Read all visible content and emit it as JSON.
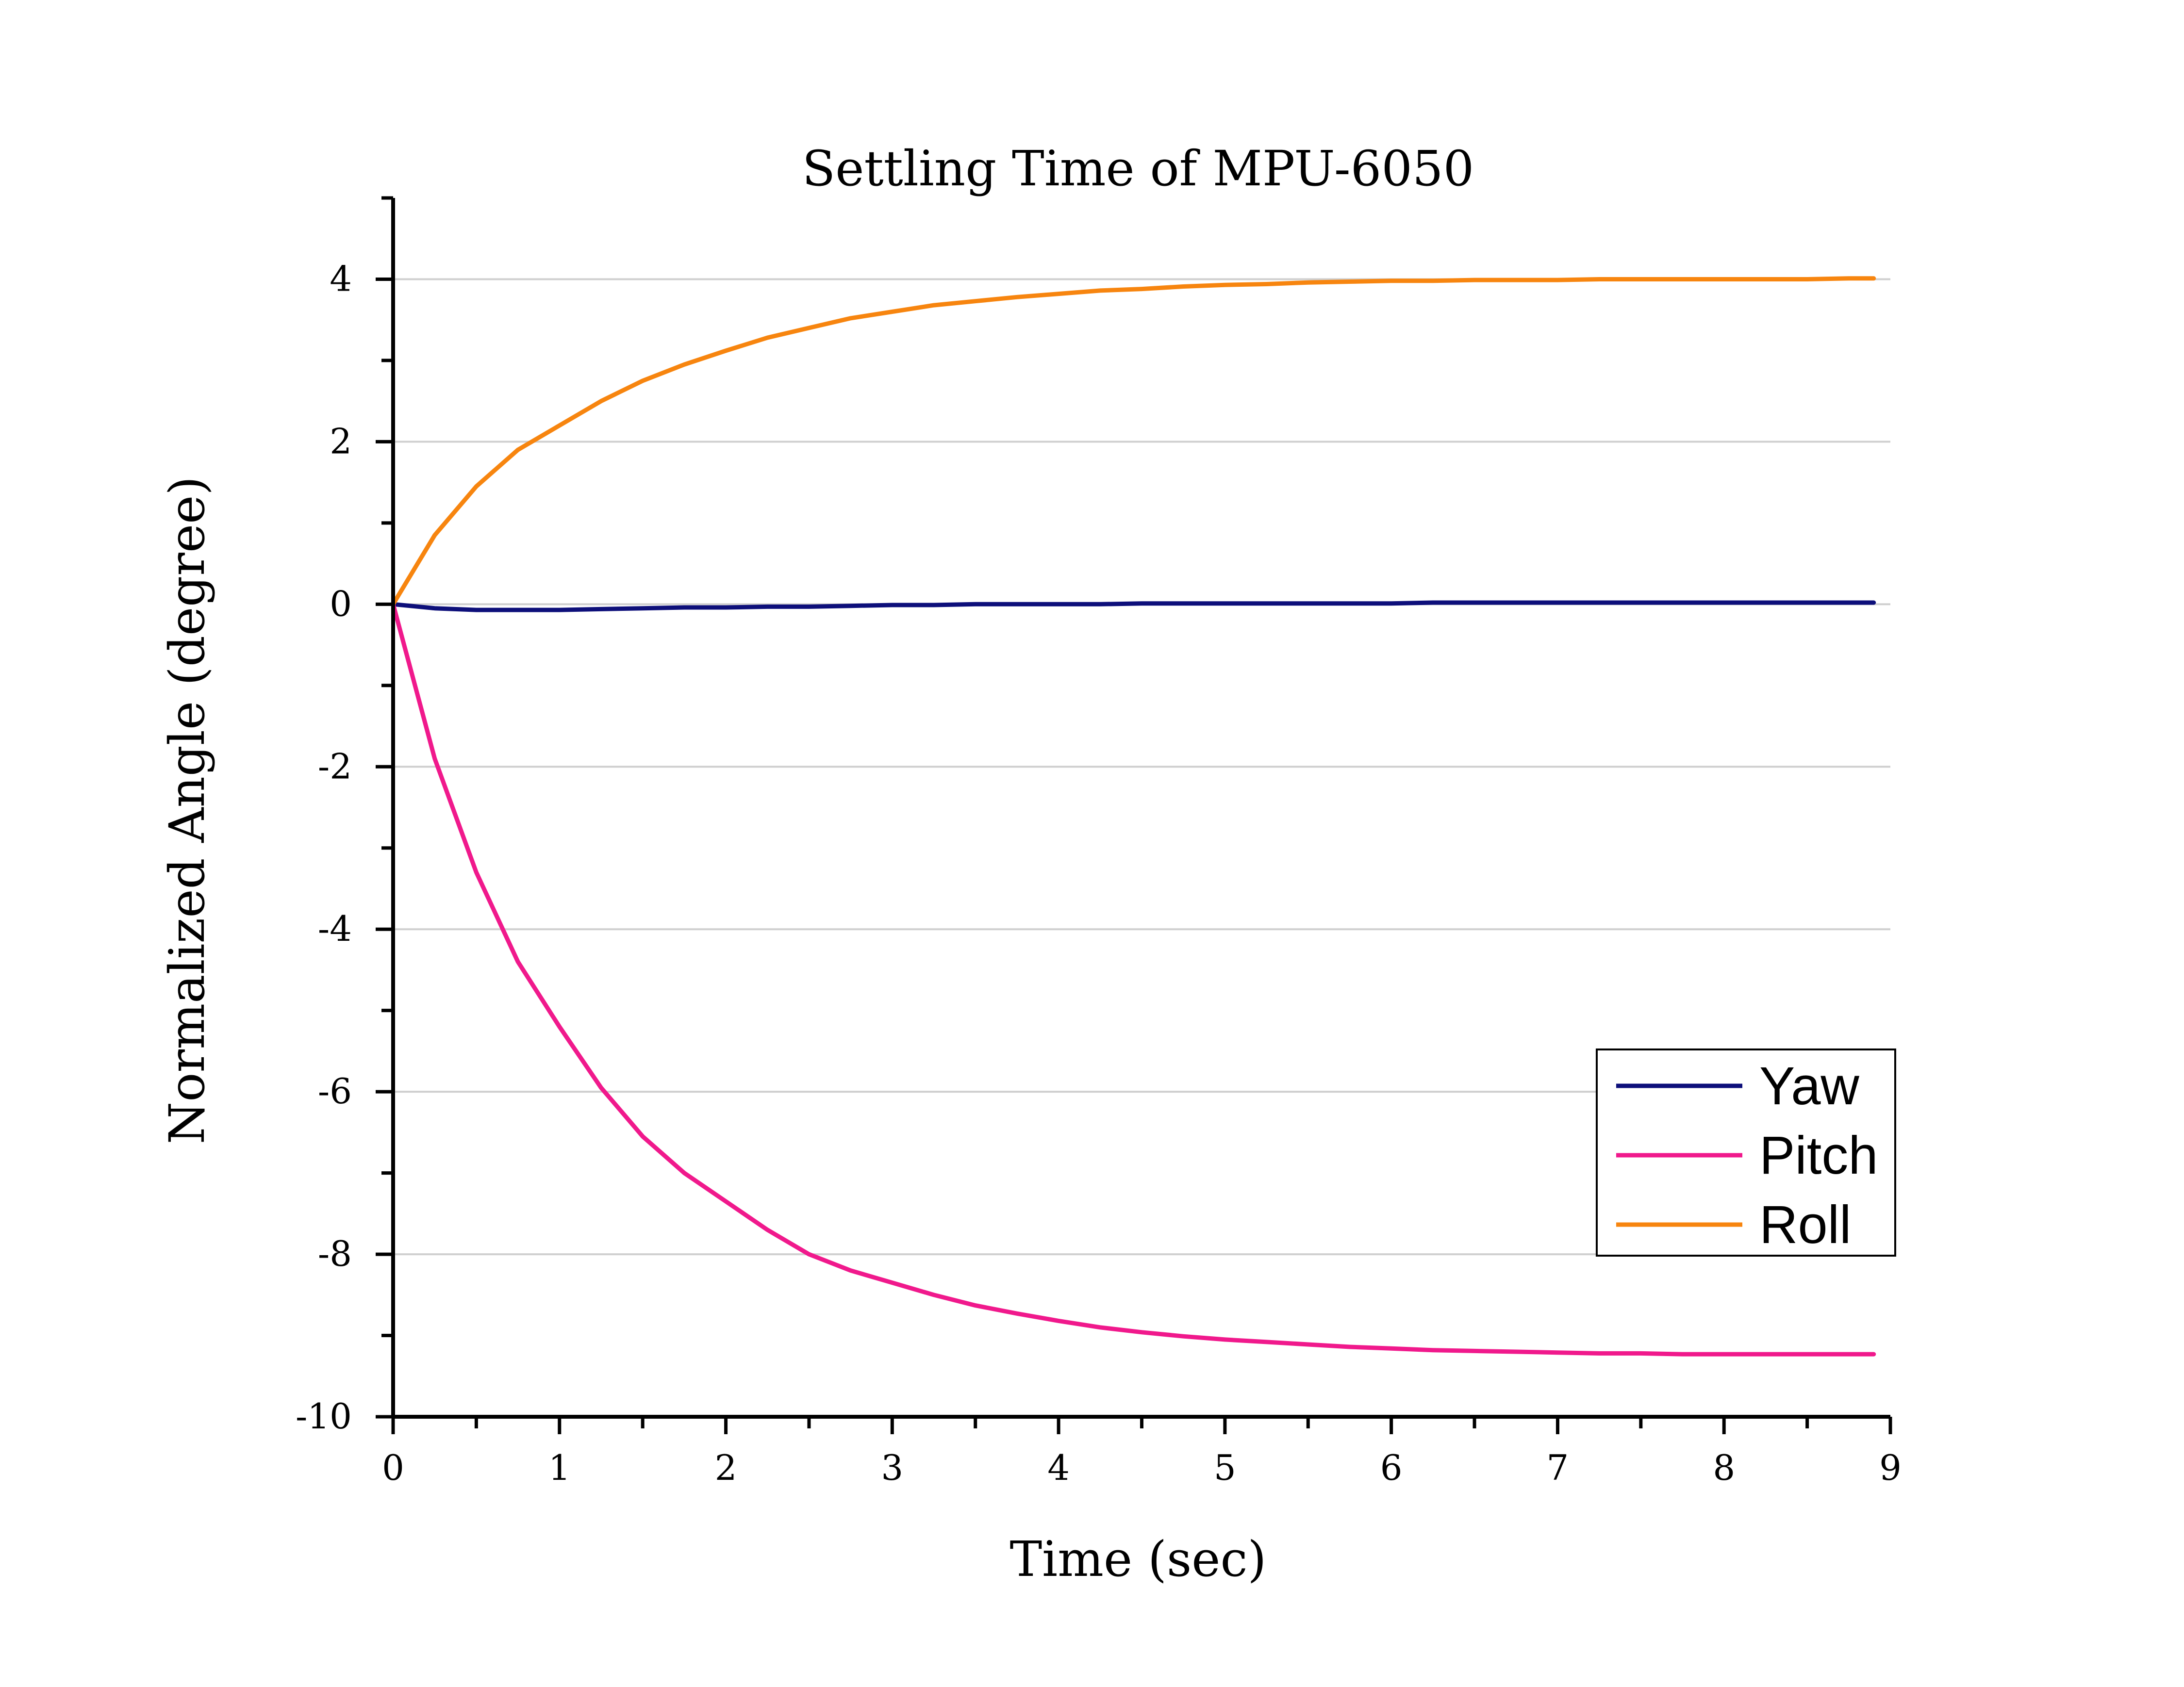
{
  "chart_data": {
    "type": "line",
    "title": "Settling Time of MPU-6050",
    "xlabel": "Time (sec)",
    "ylabel": "Normalized Angle (degree)",
    "xlim": [
      0,
      9
    ],
    "ylim": [
      -10,
      5
    ],
    "x_ticks": [
      0,
      1,
      2,
      3,
      4,
      5,
      6,
      7,
      8,
      9
    ],
    "x_tick_labels": [
      "0",
      "1",
      "2",
      "3",
      "4",
      "5",
      "6",
      "7",
      "8",
      "9"
    ],
    "y_ticks": [
      4,
      2,
      0,
      -2,
      -4,
      -6,
      -8,
      -10
    ],
    "y_tick_labels": [
      "4",
      "2",
      "0",
      "-2",
      "-4",
      "-6",
      "-8",
      "-10"
    ],
    "grid": true,
    "legend_position": "bottom-right",
    "x": [
      0,
      0.25,
      0.5,
      0.75,
      1,
      1.25,
      1.5,
      1.75,
      2,
      2.25,
      2.5,
      2.75,
      3,
      3.25,
      3.5,
      3.75,
      4,
      4.25,
      4.5,
      4.75,
      5,
      5.25,
      5.5,
      5.75,
      6,
      6.25,
      6.5,
      6.75,
      7,
      7.25,
      7.5,
      7.75,
      8,
      8.25,
      8.5,
      8.75,
      8.9
    ],
    "series": [
      {
        "name": "Yaw",
        "color": "#0d0f7a",
        "values": [
          0,
          -0.05,
          -0.07,
          -0.07,
          -0.07,
          -0.06,
          -0.05,
          -0.04,
          -0.04,
          -0.03,
          -0.03,
          -0.02,
          -0.01,
          -0.01,
          0,
          0,
          0,
          0,
          0.01,
          0.01,
          0.01,
          0.01,
          0.01,
          0.01,
          0.01,
          0.02,
          0.02,
          0.02,
          0.02,
          0.02,
          0.02,
          0.02,
          0.02,
          0.02,
          0.02,
          0.02,
          0.02
        ]
      },
      {
        "name": "Pitch",
        "color": "#f0198c",
        "values": [
          0,
          -1.9,
          -3.3,
          -4.4,
          -5.2,
          -5.95,
          -6.55,
          -7.0,
          -7.35,
          -7.7,
          -8.0,
          -8.2,
          -8.35,
          -8.5,
          -8.63,
          -8.73,
          -8.82,
          -8.9,
          -8.96,
          -9.01,
          -9.05,
          -9.08,
          -9.11,
          -9.14,
          -9.16,
          -9.18,
          -9.19,
          -9.2,
          -9.21,
          -9.22,
          -9.22,
          -9.23,
          -9.23,
          -9.23,
          -9.23,
          -9.23,
          -9.23
        ]
      },
      {
        "name": "Roll",
        "color": "#f7850f",
        "values": [
          0,
          0.85,
          1.45,
          1.9,
          2.2,
          2.5,
          2.75,
          2.95,
          3.12,
          3.28,
          3.4,
          3.52,
          3.6,
          3.68,
          3.73,
          3.78,
          3.82,
          3.86,
          3.88,
          3.91,
          3.93,
          3.94,
          3.96,
          3.97,
          3.98,
          3.98,
          3.99,
          3.99,
          3.99,
          4.0,
          4.0,
          4.0,
          4.0,
          4.0,
          4.0,
          4.01,
          4.01
        ]
      }
    ]
  }
}
